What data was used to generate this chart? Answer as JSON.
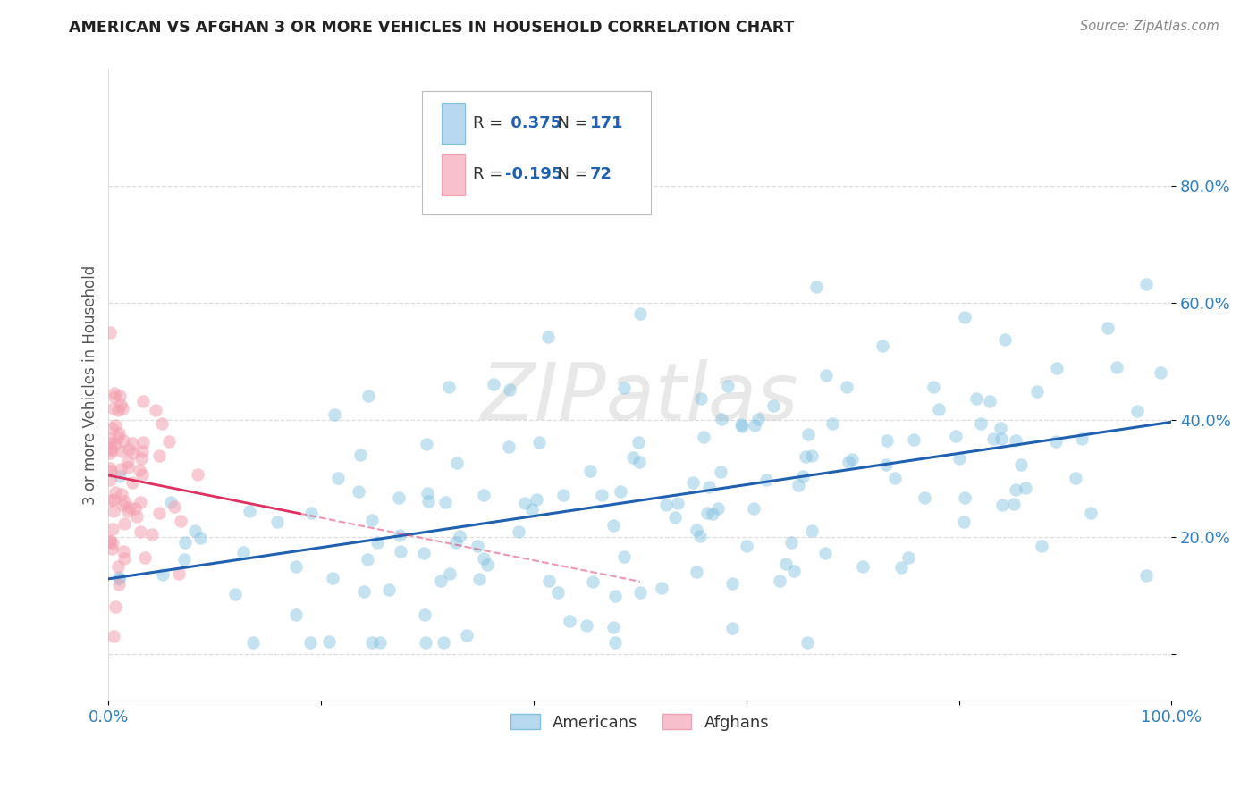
{
  "title": "AMERICAN VS AFGHAN 3 OR MORE VEHICLES IN HOUSEHOLD CORRELATION CHART",
  "source": "Source: ZipAtlas.com",
  "ylabel": "3 or more Vehicles in Household",
  "xlim": [
    0.0,
    1.0
  ],
  "ylim": [
    -0.08,
    1.0
  ],
  "x_ticks": [
    0.0,
    0.2,
    0.4,
    0.6,
    0.8,
    1.0
  ],
  "x_tick_labels": [
    "0.0%",
    "",
    "",
    "",
    "",
    "100.0%"
  ],
  "y_ticks": [
    0.0,
    0.2,
    0.4,
    0.6,
    0.8
  ],
  "y_tick_labels": [
    "",
    "20.0%",
    "40.0%",
    "60.0%",
    "80.0%"
  ],
  "R_american": 0.375,
  "N_american": 171,
  "R_afghan": -0.195,
  "N_afghan": 72,
  "american_color": "#7fbfdf",
  "afghan_color": "#f4a0b0",
  "american_line_color": "#2060b0",
  "afghan_line_color": "#e03060",
  "watermark": "ZIPatlas",
  "legend_americans": "Americans",
  "legend_afghans": "Afghans",
  "american_seed": 42,
  "afghan_seed": 99
}
